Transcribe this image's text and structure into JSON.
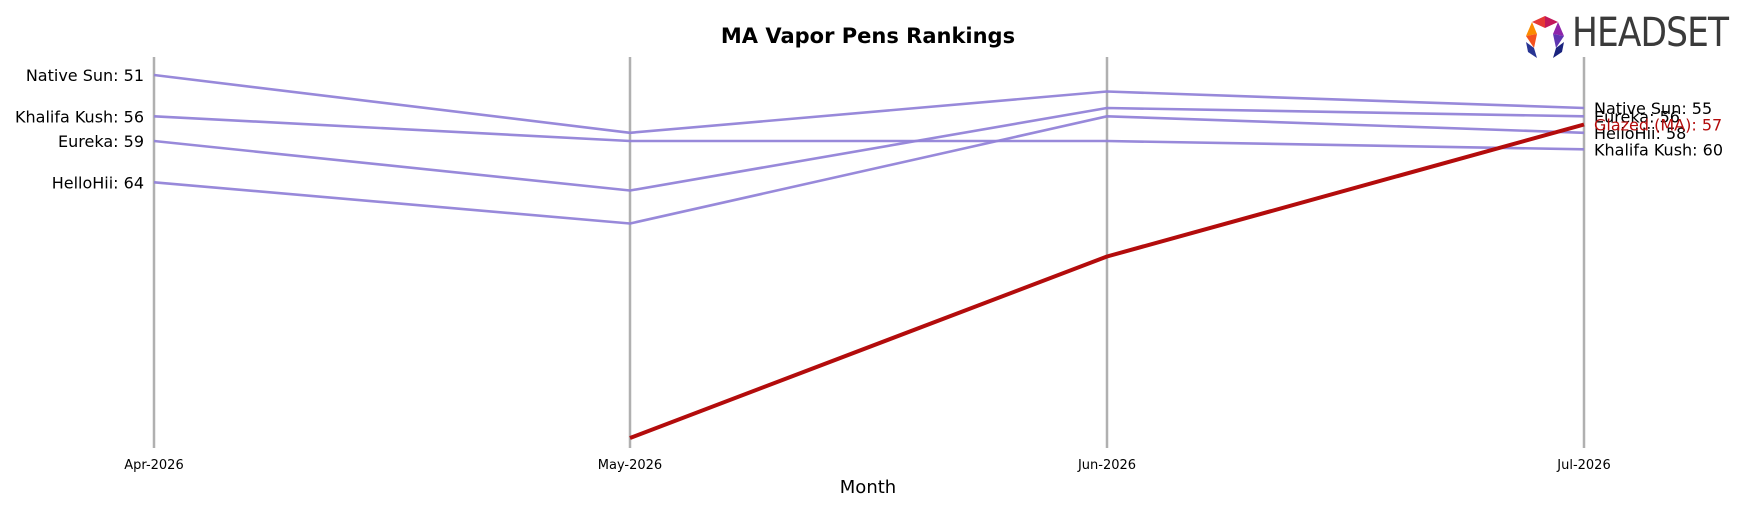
{
  "logo": {
    "text": "HEADSET"
  },
  "chart_data": {
    "type": "line",
    "title": "MA Vapor Pens Rankings",
    "xlabel": "Month",
    "ylabel": "",
    "categories": [
      "Apr-2026",
      "May-2026",
      "Jun-2026",
      "Jul-2026"
    ],
    "y_axis": "rank (inverted, 1 at top)",
    "ylim": [
      49,
      97
    ],
    "grid": "vertical lines at each month",
    "colors": {
      "highlight": "#b30c0c",
      "other": "#9283d8",
      "gridline": "#b0b0b0"
    },
    "series": [
      {
        "name": "Native Sun",
        "values": [
          51,
          58,
          53,
          55
        ],
        "highlight": false,
        "start_label": "Native Sun: 51",
        "end_label": "Native Sun: 55"
      },
      {
        "name": "Khalifa Kush",
        "values": [
          56,
          59,
          59,
          60
        ],
        "highlight": false,
        "start_label": "Khalifa Kush: 56",
        "end_label": "Khalifa Kush: 60"
      },
      {
        "name": "Eureka",
        "values": [
          59,
          65,
          55,
          56
        ],
        "highlight": false,
        "start_label": "Eureka: 59",
        "end_label": "Eureka: 56"
      },
      {
        "name": "HelloHii",
        "values": [
          64,
          69,
          56,
          58
        ],
        "highlight": false,
        "start_label": "HelloHii: 64",
        "end_label": "HelloHii: 58"
      },
      {
        "name": "Glazed (MA)",
        "values": [
          null,
          95,
          73,
          57
        ],
        "highlight": true,
        "start_label": "",
        "end_label": "Glazed (MA): 57"
      }
    ]
  }
}
